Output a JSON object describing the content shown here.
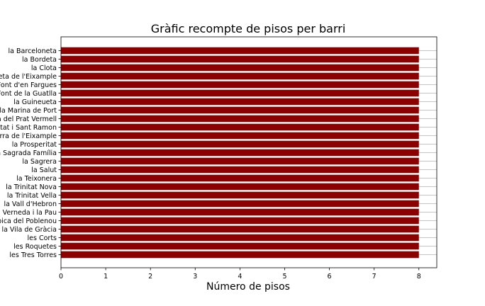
{
  "chart_data": {
    "type": "bar",
    "orientation": "horizontal",
    "title": "Gràfic recompte de pisos per barri",
    "xlabel": "Número de pisos",
    "ylabel": "",
    "categories": [
      "la Barceloneta",
      "la Bordeta",
      "la Clota",
      "la Dreta de l'Eixample",
      "la Font d'en Fargues",
      "la Font de la Guatlla",
      "la Guineueta",
      "la Marina de Port",
      "la Marina del Prat Vermell",
      "la Maternitat i Sant Ramon",
      "la Nova Esquerra de l'Eixample",
      "la Prosperitat",
      "la Sagrada Família",
      "la Sagrera",
      "la Salut",
      "la Teixonera",
      "la Trinitat Nova",
      "la Trinitat Vella",
      "la Vall d'Hebron",
      "la Verneda i la Pau",
      "la Vila Olímpica del Poblenou",
      "la Vila de Gràcia",
      "les Corts",
      "les Roquetes",
      "les Tres Torres"
    ],
    "values": [
      8,
      8,
      8,
      8,
      8,
      8,
      8,
      8,
      8,
      8,
      8,
      8,
      8,
      8,
      8,
      8,
      8,
      8,
      8,
      8,
      8,
      8,
      8,
      8,
      8
    ],
    "xlim": [
      0,
      8.4
    ],
    "xticks": [
      0,
      1,
      2,
      3,
      4,
      5,
      6,
      7,
      8
    ],
    "grid": "horizontal",
    "bar_color": "#8b0000",
    "grid_color": "#b0b0b0"
  }
}
